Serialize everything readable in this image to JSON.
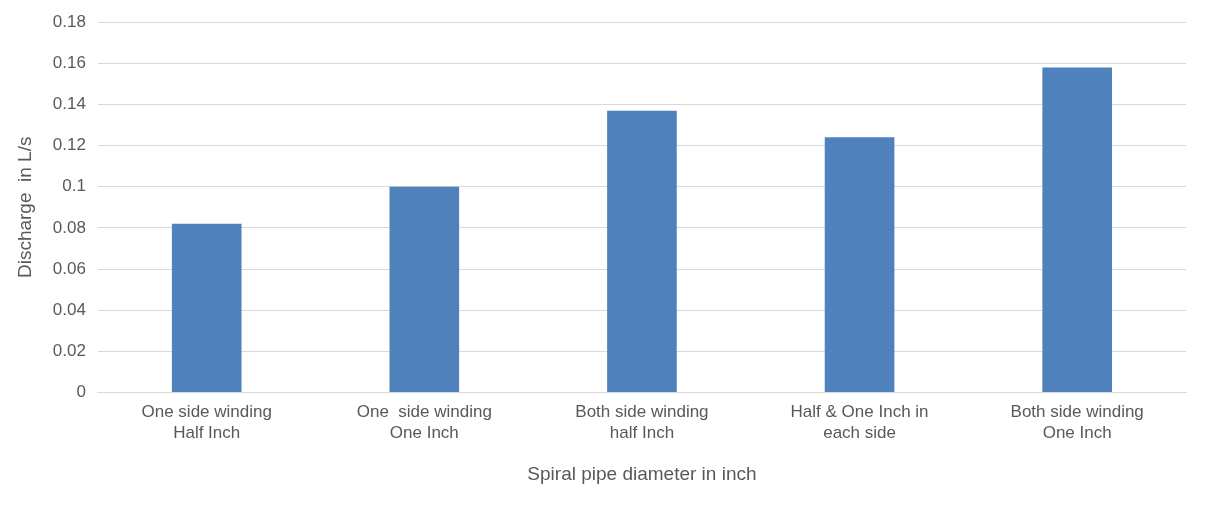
{
  "chart_data": {
    "type": "bar",
    "categories": [
      "One side winding\nHalf Inch",
      "One  side winding\nOne Inch",
      "Both side winding\nhalf Inch",
      "Half & One Inch in\neach side",
      "Both side winding\nOne Inch"
    ],
    "values": [
      0.082,
      0.1,
      0.137,
      0.124,
      0.158
    ],
    "color": "#4f81bd",
    "xlabel": "Spiral pipe diameter in inch",
    "ylabel": "Discharge  in L/s",
    "ylim": [
      0,
      0.18
    ],
    "yticks": [
      0,
      0.02,
      0.04,
      0.06,
      0.08,
      0.1,
      0.12,
      0.14,
      0.16,
      0.18
    ],
    "grid": "y",
    "legend": false
  }
}
